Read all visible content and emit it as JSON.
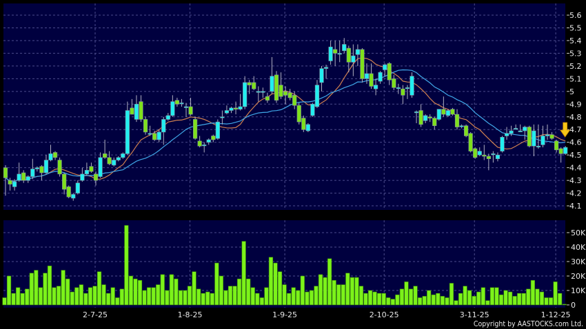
{
  "chart_data": [
    {
      "type": "candlestick",
      "panel": "price",
      "ylim": [
        4.05,
        5.65
      ],
      "yticks": [
        "4.1",
        "4.2",
        "4.3",
        "4.4",
        "4.5",
        "4.6",
        "4.7",
        "4.8",
        "4.9",
        "5",
        "5.1",
        "5.2",
        "5.3",
        "5.4",
        "5.5",
        "5.6"
      ],
      "grid": true,
      "colors": {
        "background": "#00003f",
        "up": "#22eef0",
        "down": "#7ee01c",
        "ma_short": "#d08050",
        "ma_long": "#40a8e8",
        "marker": "#f5c518",
        "grid": "#4c4c8c"
      },
      "moving_averages": [
        10,
        20
      ],
      "latest_marker": "down-arrow-icon",
      "candles": [
        [
          4.4,
          4.42,
          4.18,
          4.32
        ],
        [
          4.3,
          4.32,
          4.22,
          4.27
        ],
        [
          4.25,
          4.31,
          4.22,
          4.29
        ],
        [
          4.3,
          4.44,
          4.29,
          4.35
        ],
        [
          4.36,
          4.38,
          4.28,
          4.3
        ],
        [
          4.3,
          4.34,
          4.28,
          4.33
        ],
        [
          4.33,
          4.47,
          4.31,
          4.39
        ],
        [
          4.39,
          4.41,
          4.37,
          4.4
        ],
        [
          4.41,
          4.42,
          4.3,
          4.36
        ],
        [
          4.36,
          4.5,
          4.35,
          4.46
        ],
        [
          4.46,
          4.58,
          4.45,
          4.51
        ],
        [
          4.52,
          4.53,
          4.46,
          4.48
        ],
        [
          4.46,
          4.48,
          4.33,
          4.35
        ],
        [
          4.35,
          4.36,
          4.19,
          4.23
        ],
        [
          4.25,
          4.26,
          4.16,
          4.17
        ],
        [
          4.16,
          4.2,
          4.14,
          4.19
        ],
        [
          4.2,
          4.3,
          4.19,
          4.28
        ],
        [
          4.3,
          4.4,
          4.29,
          4.35
        ],
        [
          4.35,
          4.44,
          4.34,
          4.38
        ],
        [
          4.41,
          4.44,
          4.36,
          4.37
        ],
        [
          4.35,
          4.37,
          4.26,
          4.3
        ],
        [
          4.33,
          4.52,
          4.32,
          4.48
        ],
        [
          4.51,
          4.62,
          4.47,
          4.48
        ],
        [
          4.48,
          4.53,
          4.42,
          4.43
        ],
        [
          4.42,
          4.48,
          4.41,
          4.46
        ],
        [
          4.46,
          4.49,
          4.45,
          4.48
        ],
        [
          4.48,
          4.52,
          4.47,
          4.51
        ],
        [
          4.51,
          4.92,
          4.5,
          4.85
        ],
        [
          4.87,
          4.94,
          4.82,
          4.82
        ],
        [
          4.78,
          4.97,
          4.76,
          4.9
        ],
        [
          4.92,
          4.97,
          4.76,
          4.78
        ],
        [
          4.78,
          4.8,
          4.66,
          4.68
        ],
        [
          4.67,
          4.73,
          4.65,
          4.67
        ],
        [
          4.67,
          4.69,
          4.61,
          4.62
        ],
        [
          4.62,
          4.7,
          4.6,
          4.68
        ],
        [
          4.68,
          4.8,
          4.58,
          4.78
        ],
        [
          4.78,
          4.83,
          4.77,
          4.81
        ],
        [
          4.81,
          4.97,
          4.8,
          4.92
        ],
        [
          4.93,
          4.95,
          4.88,
          4.9
        ],
        [
          4.91,
          4.94,
          4.88,
          4.91
        ],
        [
          4.88,
          4.91,
          4.8,
          4.88
        ],
        [
          4.88,
          4.95,
          4.81,
          4.82
        ],
        [
          4.78,
          4.8,
          4.62,
          4.63
        ],
        [
          4.61,
          4.65,
          4.56,
          4.57
        ],
        [
          4.58,
          4.6,
          4.52,
          4.58
        ],
        [
          4.6,
          4.63,
          4.58,
          4.62
        ],
        [
          4.65,
          4.66,
          4.6,
          4.62
        ],
        [
          4.63,
          4.78,
          4.62,
          4.76
        ],
        [
          4.8,
          4.85,
          4.74,
          4.8
        ],
        [
          4.83,
          4.89,
          4.82,
          4.85
        ],
        [
          4.85,
          4.88,
          4.83,
          4.87
        ],
        [
          4.87,
          4.92,
          4.82,
          4.86
        ],
        [
          4.86,
          4.98,
          4.85,
          4.88
        ],
        [
          4.88,
          5.12,
          4.86,
          5.07
        ],
        [
          5.07,
          5.09,
          4.98,
          5.05
        ],
        [
          5.07,
          5.12,
          5.01,
          5.02
        ],
        [
          5.0,
          5.04,
          4.92,
          5.0
        ],
        [
          5.0,
          5.03,
          4.95,
          5.0
        ],
        [
          4.96,
          4.99,
          4.91,
          4.93
        ],
        [
          5.0,
          5.27,
          4.98,
          5.12
        ],
        [
          5.13,
          5.16,
          4.91,
          4.93
        ],
        [
          5.05,
          5.15,
          4.94,
          4.96
        ],
        [
          5.0,
          5.04,
          4.9,
          4.97
        ],
        [
          4.99,
          5.02,
          4.93,
          4.95
        ],
        [
          4.97,
          5.0,
          4.86,
          4.89
        ],
        [
          4.89,
          4.91,
          4.74,
          4.76
        ],
        [
          4.79,
          4.81,
          4.68,
          4.7
        ],
        [
          4.69,
          4.75,
          4.68,
          4.74
        ],
        [
          4.81,
          4.91,
          4.8,
          4.9
        ],
        [
          4.88,
          5.09,
          4.87,
          5.05
        ],
        [
          5.07,
          5.2,
          5.0,
          5.18
        ],
        [
          5.18,
          5.21,
          5.1,
          5.19
        ],
        [
          5.24,
          5.4,
          5.21,
          5.35
        ],
        [
          5.33,
          5.4,
          5.2,
          5.3
        ],
        [
          5.3,
          5.4,
          5.23,
          5.3
        ],
        [
          5.32,
          5.42,
          5.3,
          5.37
        ],
        [
          5.34,
          5.36,
          5.15,
          5.23
        ],
        [
          5.23,
          5.37,
          5.12,
          5.28
        ],
        [
          5.29,
          5.37,
          5.2,
          5.33
        ],
        [
          5.33,
          5.34,
          5.07,
          5.1
        ],
        [
          5.1,
          5.22,
          5.06,
          5.14
        ],
        [
          5.14,
          5.22,
          5.02,
          5.04
        ],
        [
          5.02,
          5.1,
          4.97,
          5.05
        ],
        [
          5.08,
          5.16,
          5.06,
          5.15
        ],
        [
          5.17,
          5.22,
          5.12,
          5.21
        ],
        [
          5.22,
          5.23,
          5.05,
          5.09
        ],
        [
          5.1,
          5.13,
          5.01,
          5.03
        ],
        [
          5.03,
          5.06,
          4.98,
          5.03
        ],
        [
          5.02,
          5.05,
          4.9,
          4.97
        ],
        [
          5.03,
          5.05,
          4.94,
          5.03
        ],
        [
          4.97,
          5.15,
          4.95,
          5.12
        ],
        [
          4.84,
          4.85,
          4.75,
          4.84
        ],
        [
          4.85,
          4.9,
          4.72,
          4.74
        ],
        [
          4.77,
          4.82,
          4.75,
          4.81
        ],
        [
          4.8,
          4.82,
          4.76,
          4.79
        ],
        [
          4.79,
          4.8,
          4.7,
          4.73
        ],
        [
          4.78,
          4.86,
          4.77,
          4.86
        ],
        [
          4.86,
          4.96,
          4.8,
          4.82
        ],
        [
          4.81,
          4.86,
          4.8,
          4.85
        ],
        [
          4.86,
          4.87,
          4.81,
          4.82
        ],
        [
          4.82,
          4.86,
          4.7,
          4.72
        ],
        [
          4.73,
          4.74,
          4.71,
          4.73
        ],
        [
          4.73,
          4.74,
          4.64,
          4.65
        ],
        [
          4.67,
          4.68,
          4.52,
          4.53
        ],
        [
          4.55,
          4.56,
          4.47,
          4.48
        ],
        [
          4.5,
          4.56,
          4.49,
          4.53
        ],
        [
          4.5,
          4.58,
          4.46,
          4.49
        ],
        [
          4.49,
          4.51,
          4.38,
          4.47
        ],
        [
          4.51,
          4.53,
          4.44,
          4.51
        ],
        [
          4.47,
          4.52,
          4.45,
          4.5
        ],
        [
          4.53,
          4.65,
          4.52,
          4.64
        ],
        [
          4.65,
          4.72,
          4.62,
          4.67
        ],
        [
          4.67,
          4.73,
          4.65,
          4.69
        ],
        [
          4.71,
          4.74,
          4.7,
          4.71
        ],
        [
          4.69,
          4.74,
          4.68,
          4.69
        ],
        [
          4.69,
          4.73,
          4.62,
          4.72
        ],
        [
          4.72,
          4.73,
          4.56,
          4.57
        ],
        [
          4.57,
          4.74,
          4.49,
          4.69
        ],
        [
          4.57,
          4.74,
          4.55,
          4.57
        ],
        [
          4.58,
          4.73,
          4.56,
          4.65
        ],
        [
          4.65,
          4.74,
          4.62,
          4.66
        ],
        [
          4.66,
          4.68,
          4.62,
          4.63
        ],
        [
          4.61,
          4.62,
          4.52,
          4.54
        ],
        [
          4.55,
          4.56,
          4.44,
          4.51
        ],
        [
          4.51,
          4.57,
          4.5,
          4.56
        ]
      ]
    },
    {
      "type": "bar",
      "panel": "volume",
      "ylim": [
        0,
        56
      ],
      "yticks": [
        {
          "v": 0,
          "label": "0"
        },
        {
          "v": 10,
          "label": "10K"
        },
        {
          "v": 20,
          "label": "20K"
        },
        {
          "v": 30,
          "label": "30K"
        },
        {
          "v": 40,
          "label": "40K"
        },
        {
          "v": 50,
          "label": "50K"
        }
      ],
      "grid": true,
      "colors": {
        "bar": "#7cf21a",
        "bar_edge": "#3c8a08"
      },
      "values_k": [
        5,
        20,
        8,
        12,
        8,
        11,
        22,
        24,
        12,
        22,
        27,
        12,
        13,
        24,
        18,
        9,
        12,
        14,
        8,
        12,
        13,
        23,
        14,
        8,
        12,
        5,
        11,
        55,
        20,
        18,
        17,
        10,
        12,
        12,
        14,
        21,
        10,
        21,
        18,
        10,
        10,
        13,
        23,
        11,
        8,
        9,
        8,
        29,
        20,
        10,
        13,
        13,
        18,
        44,
        18,
        12,
        8,
        5,
        12,
        33,
        29,
        23,
        14,
        8,
        12,
        10,
        20,
        9,
        10,
        13,
        21,
        19,
        32,
        17,
        14,
        14,
        22,
        19,
        19,
        13,
        8,
        10,
        9,
        8,
        8,
        5,
        4,
        7,
        11,
        16,
        11,
        13,
        5,
        6,
        10,
        7,
        8,
        6,
        5,
        15,
        3,
        8,
        13,
        10,
        6,
        9,
        12,
        3,
        12,
        12,
        7,
        10,
        9,
        6,
        8,
        8,
        11,
        17,
        11,
        9,
        5,
        5,
        16,
        8,
        0.5
      ]
    }
  ],
  "x_axis": {
    "ticks": [
      {
        "index": 20,
        "label": "2-7-25"
      },
      {
        "index": 41,
        "label": "1-8-25"
      },
      {
        "index": 62,
        "label": "1-9-25"
      },
      {
        "index": 84,
        "label": "2-10-25"
      },
      {
        "index": 104,
        "label": "3-11-25"
      },
      {
        "index": 122,
        "label": "1-12-25"
      }
    ]
  },
  "copyright": "Copyright by AASTOCKS.com Ltd."
}
